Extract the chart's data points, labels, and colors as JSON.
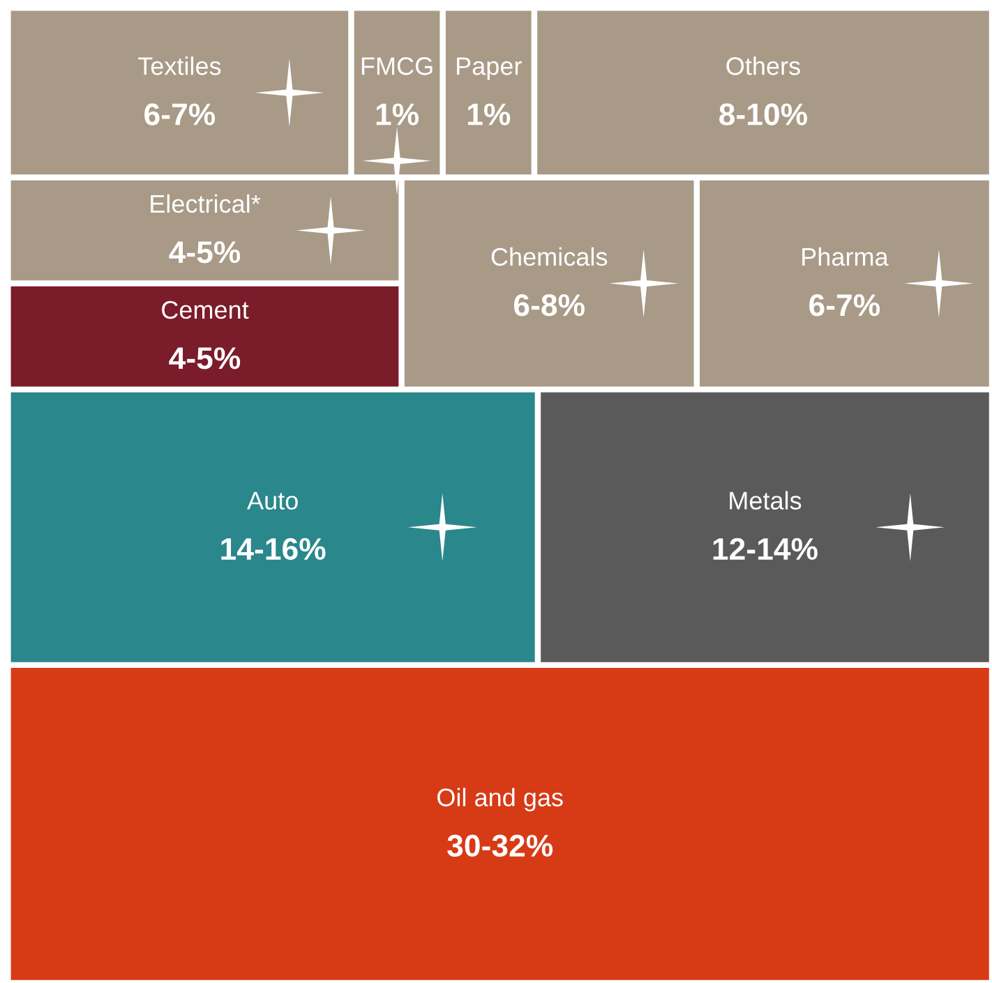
{
  "chart_data": {
    "type": "other",
    "categories": [
      "Textiles",
      "FMCG",
      "Paper",
      "Others",
      "Electrical*",
      "Cement",
      "Chemicals",
      "Pharma",
      "Auto",
      "Metals",
      "Oil and gas"
    ],
    "values": [
      6,
      1,
      1,
      8,
      4,
      4,
      6,
      6,
      14,
      12,
      30
    ],
    "value_labels": [
      "6-7%",
      "1%",
      "1%",
      "8-10%",
      "4-5%",
      "4-5%",
      "6-8%",
      "6-7%",
      "14-16%",
      "12-14%",
      "30-32%"
    ],
    "colors": [
      "#a89a87",
      "#a89a87",
      "#a89a87",
      "#a89a87",
      "#a89a87",
      "#7b1c2a",
      "#a89a87",
      "#a89a87",
      "#2a878b",
      "#5a5a5a",
      "#d63b16"
    ]
  }
}
